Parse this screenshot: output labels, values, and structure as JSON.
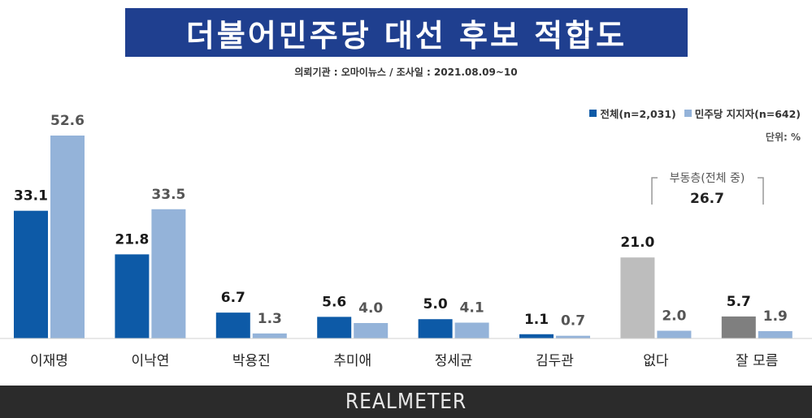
{
  "title": "더불어민주당 대선 후보 적합도",
  "subtitle": "의뢰기관 : 오마이뉴스 / 조사일 : 2021.08.09~10",
  "legend": {
    "all_label": "전체(n=2,031)",
    "supporters_label": "민주당 지지자(n=642)"
  },
  "unit": "단위: %",
  "annotation": {
    "title": "부동층(전체 중)",
    "value": "26.7"
  },
  "footer": {
    "brand": "REALMETER"
  },
  "colors": {
    "all": "#0d5aa7",
    "supporters": "#94b3d9",
    "none_all": "#bdbdbd",
    "unsure_all": "#7f7f7f",
    "title_bg": "#1f3f8f"
  },
  "chart_data": {
    "type": "bar",
    "categories": [
      "이재명",
      "이낙연",
      "박용진",
      "추미애",
      "정세균",
      "김두관",
      "없다",
      "잘 모름"
    ],
    "series": [
      {
        "name": "전체(n=2,031)",
        "values": [
          33.1,
          21.8,
          6.7,
          5.6,
          5.0,
          1.1,
          21.0,
          5.7
        ]
      },
      {
        "name": "민주당 지지자(n=642)",
        "values": [
          52.6,
          33.5,
          1.3,
          4.0,
          4.1,
          0.7,
          2.0,
          1.9
        ]
      }
    ],
    "ylim": [
      0,
      52.6
    ],
    "legend_position": "top-right"
  }
}
